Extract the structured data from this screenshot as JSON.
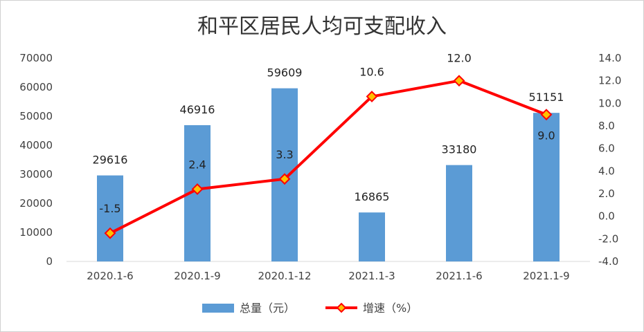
{
  "chart_data": {
    "type": "bar+line",
    "title": "和平区居民人均可支配收入",
    "categories": [
      "2020.1-6",
      "2020.1-9",
      "2020.1-12",
      "2021.1-3",
      "2021.1-6",
      "2021.1-9"
    ],
    "series": [
      {
        "name": "总量（元）",
        "type": "bar",
        "axis": "left",
        "values": [
          29616,
          46916,
          59609,
          16865,
          33180,
          51151
        ],
        "labels": [
          "29616",
          "46916",
          "59609",
          "16865",
          "33180",
          "51151"
        ],
        "color": "#5b9bd5"
      },
      {
        "name": "增速（%）",
        "type": "line",
        "axis": "right",
        "values": [
          -1.5,
          2.4,
          3.3,
          10.6,
          12.0,
          9.0
        ],
        "labels": [
          "-1.5",
          "2.4",
          "3.3",
          "10.6",
          "12.0",
          "9.0"
        ],
        "color": "#ff0000",
        "marker_color": "#ffc000"
      }
    ],
    "y_left": {
      "range": [
        0,
        70000
      ],
      "ticks": [
        "0",
        "10000",
        "20000",
        "30000",
        "40000",
        "50000",
        "60000",
        "70000"
      ]
    },
    "y_right": {
      "range": [
        -4.0,
        14.0
      ],
      "ticks": [
        "-4.0",
        "-2.0",
        "0.0",
        "2.0",
        "4.0",
        "6.0",
        "8.0",
        "10.0",
        "12.0",
        "14.0"
      ]
    },
    "grid": false,
    "legend": "bottom-center"
  }
}
